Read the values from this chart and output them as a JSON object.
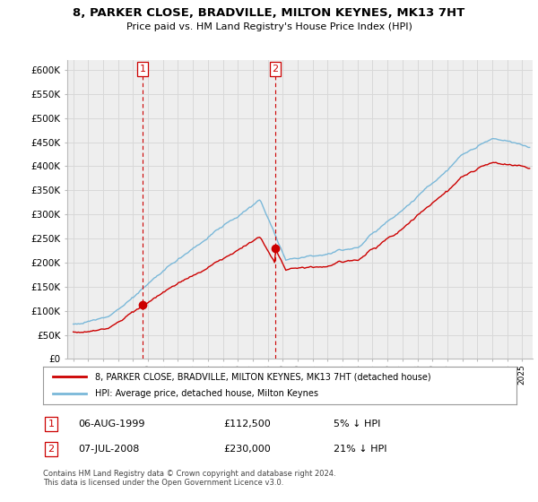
{
  "title": "8, PARKER CLOSE, BRADVILLE, MILTON KEYNES, MK13 7HT",
  "subtitle": "Price paid vs. HM Land Registry's House Price Index (HPI)",
  "yticks": [
    0,
    50000,
    100000,
    150000,
    200000,
    250000,
    300000,
    350000,
    400000,
    450000,
    500000,
    550000,
    600000
  ],
  "ytick_labels": [
    "£0",
    "£50K",
    "£100K",
    "£150K",
    "£200K",
    "£250K",
    "£300K",
    "£350K",
    "£400K",
    "£450K",
    "£500K",
    "£550K",
    "£600K"
  ],
  "t1": 1999.625,
  "t2": 2008.5,
  "p1": 112500,
  "p2": 230000,
  "hpi_color": "#7ab8d9",
  "price_color": "#cc0000",
  "grid_color": "#d8d8d8",
  "bg_color": "#eeeeee",
  "legend_line1": "8, PARKER CLOSE, BRADVILLE, MILTON KEYNES, MK13 7HT (detached house)",
  "legend_line2": "HPI: Average price, detached house, Milton Keynes",
  "footer": "Contains HM Land Registry data © Crown copyright and database right 2024.\nThis data is licensed under the Open Government Licence v3.0.",
  "row1": [
    "1",
    "06-AUG-1999",
    "£112,500",
    "5% ↓ HPI"
  ],
  "row2": [
    "2",
    "07-JUL-2008",
    "£230,000",
    "21% ↓ HPI"
  ]
}
